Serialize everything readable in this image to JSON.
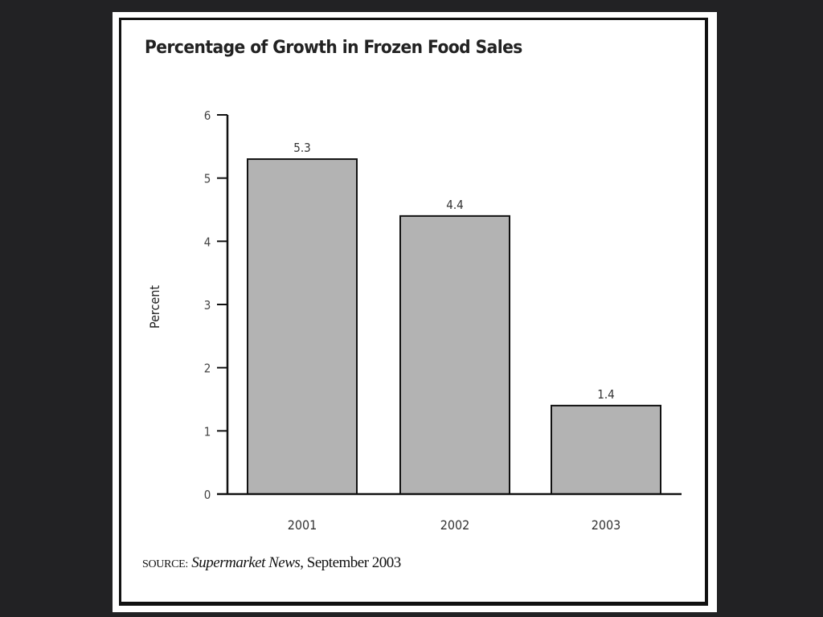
{
  "chart_data": {
    "type": "bar",
    "title": "Percentage of Growth in Frozen Food Sales",
    "categories": [
      "2001",
      "2002",
      "2003"
    ],
    "values": [
      5.3,
      4.4,
      1.4
    ],
    "value_labels": [
      "5.3",
      "4.4",
      "1.4"
    ],
    "xlabel": "",
    "ylabel": "Percent",
    "ylim": [
      0,
      6
    ],
    "yticks": [
      "0",
      "1",
      "2",
      "3",
      "4",
      "5",
      "6"
    ],
    "grid": false,
    "bar_color": "#b3b3b3",
    "source": {
      "prefix": "SOURCE:",
      "publication": "Supermarket News",
      "date": ", September 2003"
    }
  }
}
